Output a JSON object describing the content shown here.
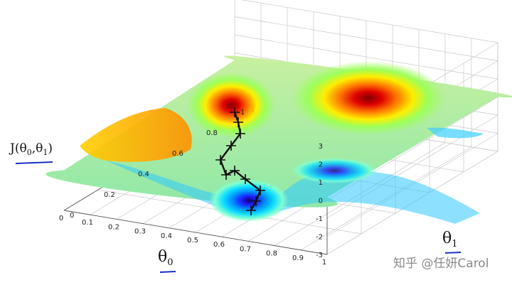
{
  "chart_data": {
    "type": "surface",
    "title": "",
    "zlabel": "J(θ0,θ1)",
    "xlabel": "θ0",
    "ylabel": "θ1",
    "zlim": [
      -3,
      3
    ],
    "z_ticks": [
      "3",
      "2",
      "1",
      "0",
      "-1",
      "-2",
      "-3"
    ],
    "theta0_ticks": [
      "1",
      "0.9",
      "0.8",
      "0.7",
      "0.6",
      "0.5",
      "0.4",
      "0.3",
      "0.2",
      "0.1",
      "0"
    ],
    "theta1_ticks": [
      "0",
      "0.2",
      "0.4",
      "0.6",
      "0.8",
      "1"
    ],
    "grid": true,
    "colormap": "jet",
    "descent_path": {
      "color": "#111111",
      "points": [
        {
          "theta0": 0.38,
          "theta1": 0.12
        },
        {
          "theta0": 0.36,
          "theta1": 0.18
        },
        {
          "theta0": 0.38,
          "theta1": 0.26
        },
        {
          "theta0": 0.33,
          "theta1": 0.34
        },
        {
          "theta0": 0.3,
          "theta1": 0.41
        },
        {
          "theta0": 0.26,
          "theta1": 0.47
        },
        {
          "theta0": 0.26,
          "theta1": 0.56
        },
        {
          "theta0": 0.23,
          "theta1": 0.63
        },
        {
          "theta0": 0.18,
          "theta1": 0.69
        },
        {
          "theta0": 0.16,
          "theta1": 0.77
        },
        {
          "theta0": 0.15,
          "theta1": 0.86
        }
      ]
    }
  },
  "labels": {
    "z_axis": "J(θ0,θ1)",
    "theta0": "θ0",
    "theta1": "θ1"
  },
  "watermark": "知乎 @任妍Carol"
}
